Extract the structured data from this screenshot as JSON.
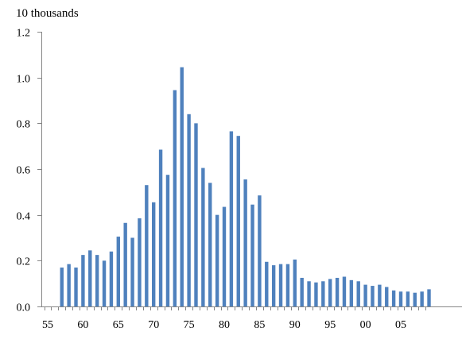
{
  "chart_data": {
    "type": "bar",
    "unit_label": "10 thousands",
    "bar_color": "#4F81BD",
    "axis_color": "#868686",
    "ylim": [
      0,
      1.2
    ],
    "y_ticks": [
      {
        "value": 0.0,
        "label": "0.0"
      },
      {
        "value": 0.2,
        "label": "0.2"
      },
      {
        "value": 0.4,
        "label": "0.4"
      },
      {
        "value": 0.6,
        "label": "0.6"
      },
      {
        "value": 0.8,
        "label": "0.8"
      },
      {
        "value": 1.0,
        "label": "1.0"
      },
      {
        "value": 1.2,
        "label": "1.2"
      }
    ],
    "x_ticks": [
      {
        "year": 1955,
        "label": "55"
      },
      {
        "year": 1960,
        "label": "60"
      },
      {
        "year": 1965,
        "label": "65"
      },
      {
        "year": 1970,
        "label": "70"
      },
      {
        "year": 1975,
        "label": "75"
      },
      {
        "year": 1980,
        "label": "80"
      },
      {
        "year": 1985,
        "label": "85"
      },
      {
        "year": 1990,
        "label": "90"
      },
      {
        "year": 1995,
        "label": "95"
      },
      {
        "year": 2000,
        "label": "00"
      },
      {
        "year": 2005,
        "label": "05"
      }
    ],
    "grid": false,
    "legend": "none",
    "x": [
      1957,
      1958,
      1959,
      1960,
      1961,
      1962,
      1963,
      1964,
      1965,
      1966,
      1967,
      1968,
      1969,
      1970,
      1971,
      1972,
      1973,
      1974,
      1975,
      1976,
      1977,
      1978,
      1979,
      1980,
      1981,
      1982,
      1983,
      1984,
      1985,
      1986,
      1987,
      1988,
      1989,
      1990,
      1991,
      1992,
      1993,
      1994,
      1995,
      1996,
      1997,
      1998,
      1999,
      2000,
      2001,
      2002,
      2003,
      2004,
      2005,
      2006,
      2007,
      2008,
      2009
    ],
    "values": [
      0.17,
      0.185,
      0.17,
      0.225,
      0.245,
      0.225,
      0.2,
      0.24,
      0.305,
      0.365,
      0.3,
      0.385,
      0.53,
      0.455,
      0.685,
      0.575,
      0.945,
      1.045,
      0.84,
      0.8,
      0.605,
      0.54,
      0.4,
      0.435,
      0.765,
      0.745,
      0.555,
      0.445,
      0.485,
      0.195,
      0.18,
      0.185,
      0.185,
      0.205,
      0.125,
      0.11,
      0.105,
      0.11,
      0.12,
      0.125,
      0.13,
      0.115,
      0.11,
      0.095,
      0.09,
      0.095,
      0.085,
      0.07,
      0.065,
      0.065,
      0.06,
      0.065,
      0.075
    ]
  }
}
